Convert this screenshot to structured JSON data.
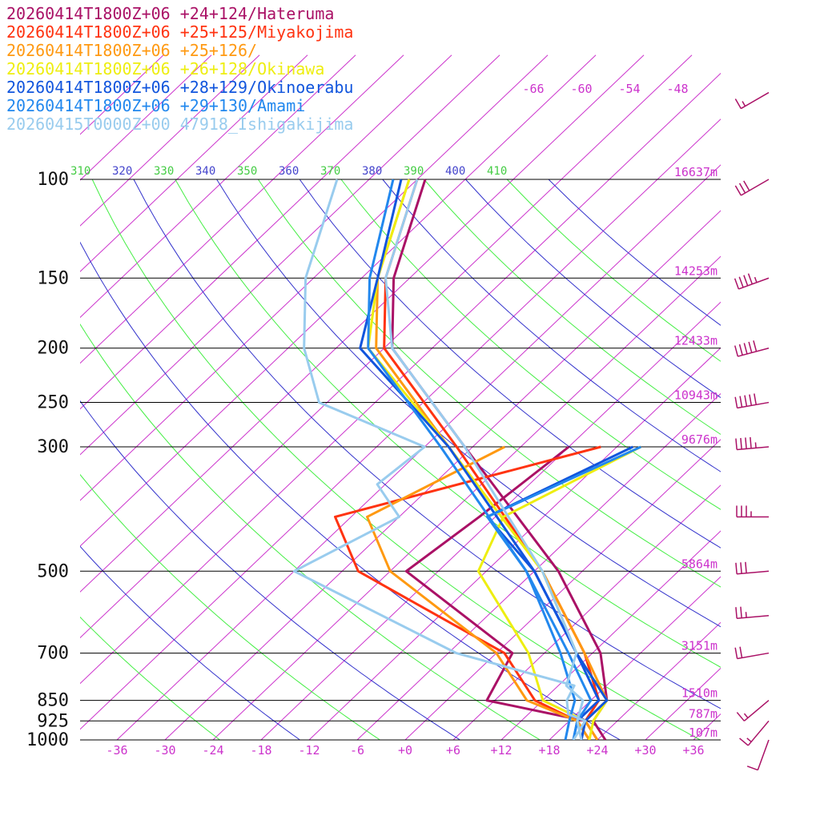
{
  "chart_data": {
    "type": "line",
    "title": "",
    "xlabel": "",
    "ylabel": "",
    "legend": {
      "placement": "top-left",
      "entries": [
        {
          "text": "20260414T1800Z+06 +24+124/Hateruma",
          "color": "#aa1166"
        },
        {
          "text": "20260414T1800Z+06 +25+125/Miyakojima",
          "color": "#ff3311"
        },
        {
          "text": "20260414T1800Z+06 +25+126/",
          "color": "#ff9911"
        },
        {
          "text": "20260414T1800Z+06 +26+128/Okinawa",
          "color": "#eeee11"
        },
        {
          "text": "20260414T1800Z+06 +28+129/Okinoerabu",
          "color": "#1155dd"
        },
        {
          "text": "20260414T1800Z+06 +29+130/Amami",
          "color": "#2288ee"
        },
        {
          "text": "20260415T0000Z+00 47918_Ishigakijima",
          "color": "#99ccee"
        }
      ]
    },
    "pressure_levels": [
      {
        "p": 100,
        "label": "100",
        "height": "16637m"
      },
      {
        "p": 150,
        "label": "150",
        "height": "14253m"
      },
      {
        "p": 200,
        "label": "200",
        "height": "12433m"
      },
      {
        "p": 250,
        "label": "250",
        "height": "10943m"
      },
      {
        "p": 300,
        "label": "300",
        "height": "9676m"
      },
      {
        "p": 500,
        "label": "500",
        "height": "5864m"
      },
      {
        "p": 700,
        "label": "700",
        "height": "3151m"
      },
      {
        "p": 850,
        "label": "850",
        "height": "1510m"
      },
      {
        "p": 925,
        "label": "925",
        "height": "787m"
      },
      {
        "p": 1000,
        "label": "1000",
        "height": "107m"
      }
    ],
    "x_ticks": [
      "-36",
      "-30",
      "-24",
      "-18",
      "-12",
      "-6",
      "+0",
      "+6",
      "+12",
      "+18",
      "+24",
      "+30",
      "+36"
    ],
    "x_tick_values": [
      -36,
      -30,
      -24,
      -18,
      -12,
      -6,
      0,
      6,
      12,
      18,
      24,
      30,
      36
    ],
    "isotherm_top_labels": [
      "-66",
      "-60",
      "-54",
      "-48"
    ],
    "theta_labels": [
      {
        "text": "310",
        "color": "#44cc44"
      },
      {
        "text": "320",
        "color": "#4444cc"
      },
      {
        "text": "330",
        "color": "#44cc44"
      },
      {
        "text": "340",
        "color": "#4444cc"
      },
      {
        "text": "350",
        "color": "#44cc44"
      },
      {
        "text": "360",
        "color": "#4444cc"
      },
      {
        "text": "370",
        "color": "#44cc44"
      },
      {
        "text": "380",
        "color": "#4444cc"
      },
      {
        "text": "390",
        "color": "#44cc44"
      },
      {
        "text": "400",
        "color": "#4444cc"
      },
      {
        "text": "410",
        "color": "#44cc44"
      }
    ],
    "colors": {
      "isotherm": "#cc33cc",
      "theta_a": "#44ee44",
      "theta_b": "#3333cc",
      "isobar": "#000000",
      "barb": "#aa1166"
    },
    "series": [
      {
        "name": "20260414T1800Z+06 +24+124/Hateruma",
        "color": "#aa1166",
        "temp": [
          [
            1000,
            25
          ],
          [
            925,
            21
          ],
          [
            850,
            20
          ],
          [
            700,
            13
          ],
          [
            500,
            -3
          ],
          [
            300,
            -31
          ],
          [
            200,
            -53
          ],
          [
            150,
            -62
          ],
          [
            100,
            -71
          ]
        ],
        "dew": [
          [
            1000,
            22
          ],
          [
            925,
            20
          ],
          [
            850,
            5
          ],
          [
            700,
            2
          ],
          [
            500,
            -22
          ],
          [
            400,
            -20
          ],
          [
            300,
            -18
          ]
        ]
      },
      {
        "name": "20260414T1800Z+06 +25+125/Miyakojima",
        "color": "#ff3311",
        "temp": [
          [
            1000,
            24
          ],
          [
            925,
            20
          ],
          [
            850,
            19
          ],
          [
            700,
            11
          ],
          [
            500,
            -5
          ],
          [
            300,
            -32
          ],
          [
            200,
            -54
          ],
          [
            150,
            -63
          ],
          [
            100,
            -72
          ]
        ],
        "dew": [
          [
            1000,
            23
          ],
          [
            925,
            19
          ],
          [
            850,
            11
          ],
          [
            700,
            1
          ],
          [
            500,
            -28
          ],
          [
            400,
            -38
          ],
          [
            300,
            -14
          ]
        ]
      },
      {
        "name": "20260414T1800Z+06 +25+126/",
        "color": "#ff9911",
        "temp": [
          [
            1000,
            24
          ],
          [
            925,
            20
          ],
          [
            850,
            20
          ],
          [
            700,
            11
          ],
          [
            500,
            -5
          ],
          [
            300,
            -33
          ],
          [
            200,
            -55
          ],
          [
            150,
            -64
          ],
          [
            100,
            -73
          ]
        ],
        "dew": [
          [
            1000,
            23
          ],
          [
            925,
            19
          ],
          [
            850,
            10
          ],
          [
            700,
            0
          ],
          [
            500,
            -24
          ],
          [
            400,
            -34
          ],
          [
            300,
            -26
          ]
        ]
      },
      {
        "name": "20260414T1800Z+06 +26+128/Okinawa",
        "color": "#eeee11",
        "temp": [
          [
            1000,
            23
          ],
          [
            925,
            21
          ],
          [
            850,
            20
          ],
          [
            700,
            10
          ],
          [
            500,
            -5
          ],
          [
            300,
            -33
          ],
          [
            200,
            -56
          ],
          [
            150,
            -64
          ],
          [
            100,
            -73
          ]
        ],
        "dew": [
          [
            1000,
            22
          ],
          [
            925,
            20
          ],
          [
            850,
            12
          ],
          [
            700,
            4
          ],
          [
            500,
            -13
          ],
          [
            400,
            -17
          ],
          [
            300,
            -9
          ]
        ]
      },
      {
        "name": "20260414T1800Z+06 +28+129/Okinoerabu",
        "color": "#1155dd",
        "temp": [
          [
            1000,
            22
          ],
          [
            925,
            20
          ],
          [
            850,
            20
          ],
          [
            700,
            10
          ],
          [
            500,
            -6
          ],
          [
            300,
            -33
          ],
          [
            200,
            -57
          ],
          [
            150,
            -64
          ],
          [
            100,
            -74
          ]
        ],
        "dew": [
          [
            1000,
            21
          ],
          [
            925,
            19
          ],
          [
            850,
            19
          ],
          [
            700,
            10
          ],
          [
            500,
            -6
          ],
          [
            400,
            -19
          ],
          [
            300,
            -10
          ]
        ]
      },
      {
        "name": "20260414T1800Z+06 +29+130/Amami",
        "color": "#2288ee",
        "temp": [
          [
            1000,
            21
          ],
          [
            925,
            19
          ],
          [
            850,
            18
          ],
          [
            700,
            9
          ],
          [
            500,
            -7
          ],
          [
            300,
            -34
          ],
          [
            200,
            -56
          ],
          [
            150,
            -65
          ],
          [
            100,
            -75
          ]
        ],
        "dew": [
          [
            1000,
            20
          ],
          [
            925,
            18
          ],
          [
            850,
            16
          ],
          [
            700,
            8
          ],
          [
            500,
            -7
          ],
          [
            400,
            -19
          ],
          [
            300,
            -9
          ]
        ]
      },
      {
        "name": "20260415T0000Z+00 47918_Ishigakijima",
        "color": "#99ccee",
        "temp": [
          [
            1000,
            22
          ],
          [
            925,
            19
          ],
          [
            850,
            17
          ],
          [
            800,
            13
          ],
          [
            700,
            10
          ],
          [
            500,
            -5
          ],
          [
            300,
            -31
          ],
          [
            200,
            -53
          ],
          [
            150,
            -63
          ],
          [
            100,
            -72
          ]
        ],
        "dew": [
          [
            1000,
            21
          ],
          [
            925,
            20
          ],
          [
            900,
            17
          ],
          [
            850,
            15
          ],
          [
            800,
            14
          ],
          [
            700,
            -5
          ],
          [
            500,
            -36
          ],
          [
            400,
            -30
          ],
          [
            350,
            -37
          ],
          [
            300,
            -36
          ],
          [
            250,
            -55
          ],
          [
            200,
            -64
          ],
          [
            150,
            -73
          ],
          [
            100,
            -82
          ]
        ]
      }
    ],
    "wind_barbs": [
      {
        "p": 1000,
        "speed_kt": 10,
        "dir_deg": 200
      },
      {
        "p": 925,
        "speed_kt": 15,
        "dir_deg": 220
      },
      {
        "p": 850,
        "speed_kt": 15,
        "dir_deg": 230
      },
      {
        "p": 700,
        "speed_kt": 20,
        "dir_deg": 260
      },
      {
        "p": 600,
        "speed_kt": 25,
        "dir_deg": 265
      },
      {
        "p": 500,
        "speed_kt": 30,
        "dir_deg": 265
      },
      {
        "p": 400,
        "speed_kt": 35,
        "dir_deg": 270
      },
      {
        "p": 300,
        "speed_kt": 45,
        "dir_deg": 265
      },
      {
        "p": 250,
        "speed_kt": 50,
        "dir_deg": 260
      },
      {
        "p": 200,
        "speed_kt": 50,
        "dir_deg": 255
      },
      {
        "p": 150,
        "speed_kt": 45,
        "dir_deg": 250
      },
      {
        "p": 100,
        "speed_kt": 30,
        "dir_deg": 240
      },
      {
        "p": 70,
        "speed_kt": 15,
        "dir_deg": 240
      }
    ]
  }
}
